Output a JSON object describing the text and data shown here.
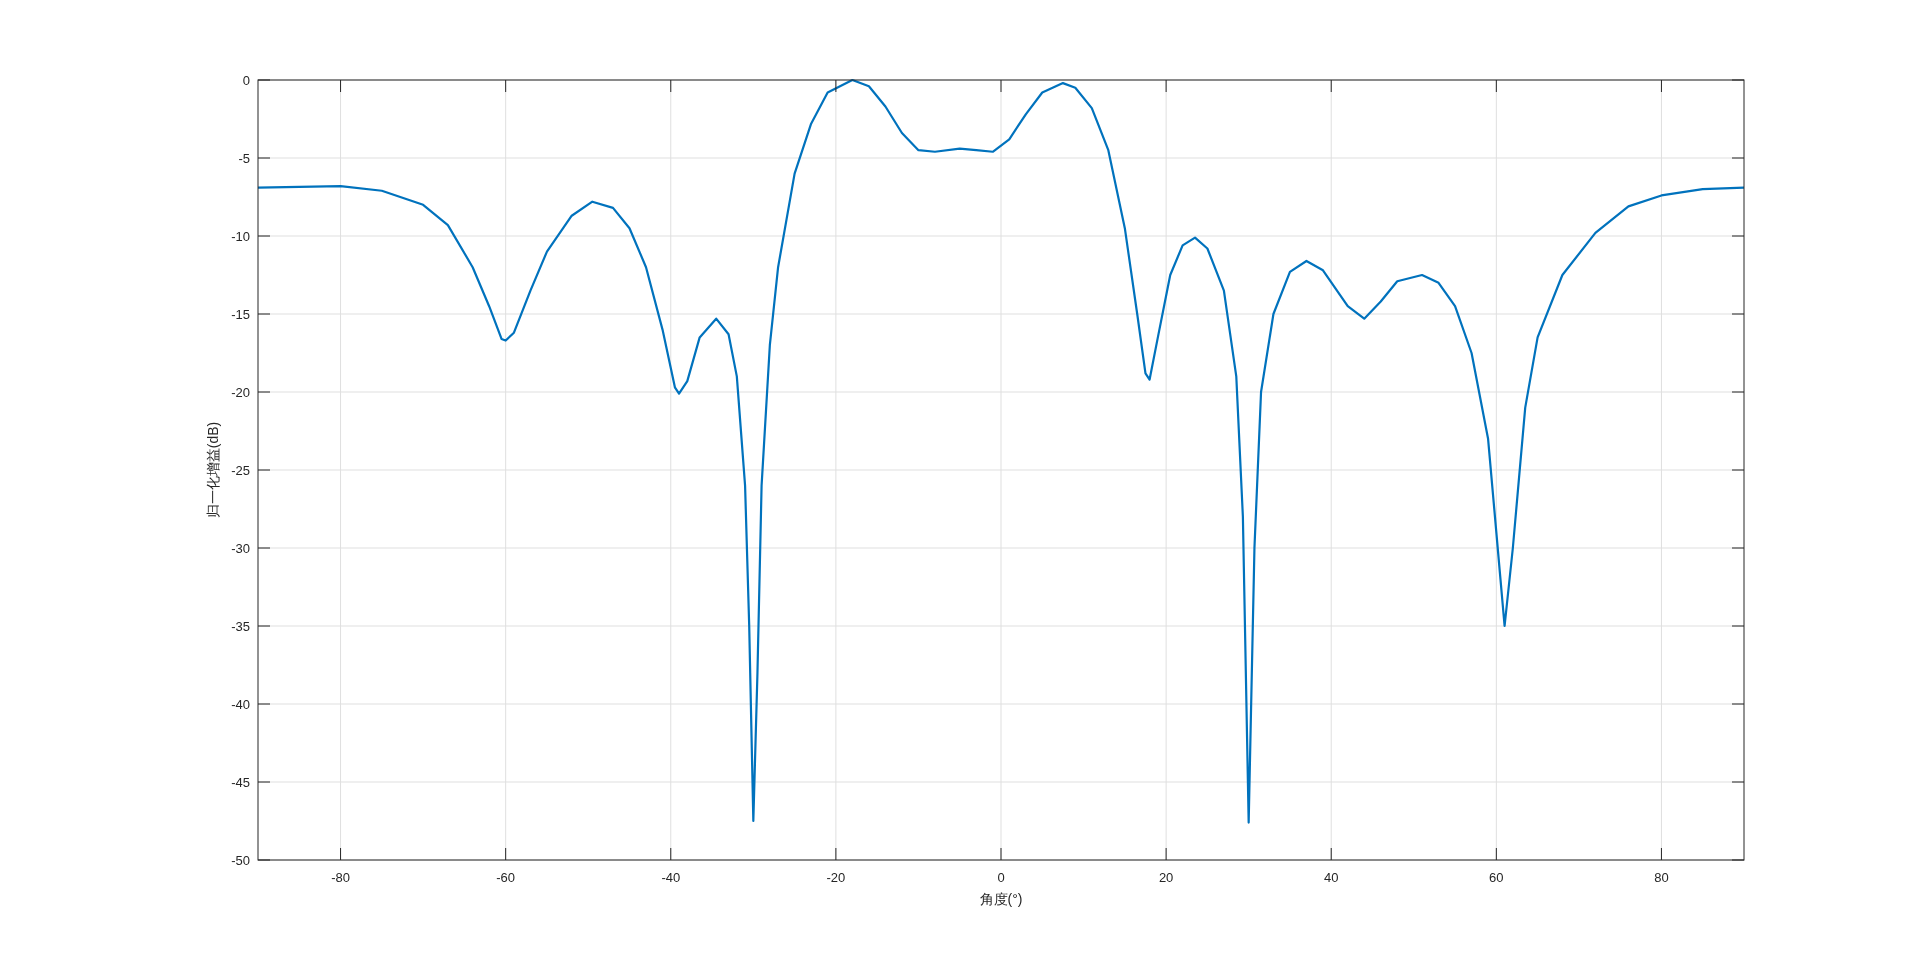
{
  "chart_data": {
    "type": "line",
    "xlabel": "角度(°)",
    "ylabel": "归一化增益(dB)",
    "xlim": [
      -90,
      90
    ],
    "ylim": [
      -50,
      0
    ],
    "xticks": [
      -80,
      -60,
      -40,
      -20,
      0,
      20,
      40,
      60,
      80
    ],
    "yticks": [
      -50,
      -45,
      -40,
      -35,
      -30,
      -25,
      -20,
      -15,
      -10,
      -5,
      0
    ],
    "grid": true,
    "series": [
      {
        "color": "#0072bd",
        "x": [
          -90,
          -85,
          -80,
          -75,
          -70,
          -67,
          -64,
          -62,
          -60.5,
          -60,
          -59,
          -57,
          -55,
          -52,
          -49.5,
          -47,
          -45,
          -43,
          -41,
          -39.5,
          -39,
          -38,
          -36.5,
          -34.5,
          -33,
          -32,
          -31,
          -30.5,
          -30,
          -29.5,
          -29,
          -28,
          -27,
          -25,
          -23,
          -21,
          -18,
          -16,
          -14,
          -12,
          -10,
          -8,
          -5,
          -3,
          -1,
          1,
          3,
          5,
          7.5,
          9,
          11,
          13,
          15,
          16.5,
          17.5,
          18,
          19,
          20.5,
          22,
          23.5,
          25,
          27,
          28.5,
          29.3,
          30,
          30.7,
          31.5,
          33,
          35,
          37,
          39,
          42,
          44,
          46,
          48,
          51,
          53,
          55,
          57,
          59,
          60.5,
          61,
          62,
          63.5,
          65,
          68,
          72,
          76,
          80,
          85,
          90
        ],
        "values": [
          -6.9,
          -6.85,
          -6.8,
          -7.1,
          -8.0,
          -9.3,
          -12,
          -14.5,
          -16.6,
          -16.7,
          -16.2,
          -13.5,
          -11,
          -8.7,
          -7.8,
          -8.2,
          -9.5,
          -12,
          -16,
          -19.7,
          -20.1,
          -19.3,
          -16.5,
          -15.3,
          -16.3,
          -19,
          -26,
          -35,
          -47.5,
          -38,
          -26,
          -17,
          -12,
          -6,
          -2.8,
          -0.8,
          0,
          -0.4,
          -1.7,
          -3.4,
          -4.5,
          -4.6,
          -4.4,
          -4.5,
          -4.6,
          -3.8,
          -2.2,
          -0.8,
          -0.2,
          -0.5,
          -1.8,
          -4.5,
          -9.5,
          -15,
          -18.8,
          -19.2,
          -16.5,
          -12.5,
          -10.6,
          -10.1,
          -10.8,
          -13.5,
          -19,
          -28,
          -47.6,
          -30,
          -20,
          -15,
          -12.3,
          -11.6,
          -12.2,
          -14.5,
          -15.3,
          -14.2,
          -12.9,
          -12.5,
          -13,
          -14.5,
          -17.5,
          -23,
          -32,
          -35,
          -30,
          -21,
          -16.5,
          -12.5,
          -9.8,
          -8.1,
          -7.4,
          -7.0,
          -6.9
        ]
      }
    ]
  }
}
